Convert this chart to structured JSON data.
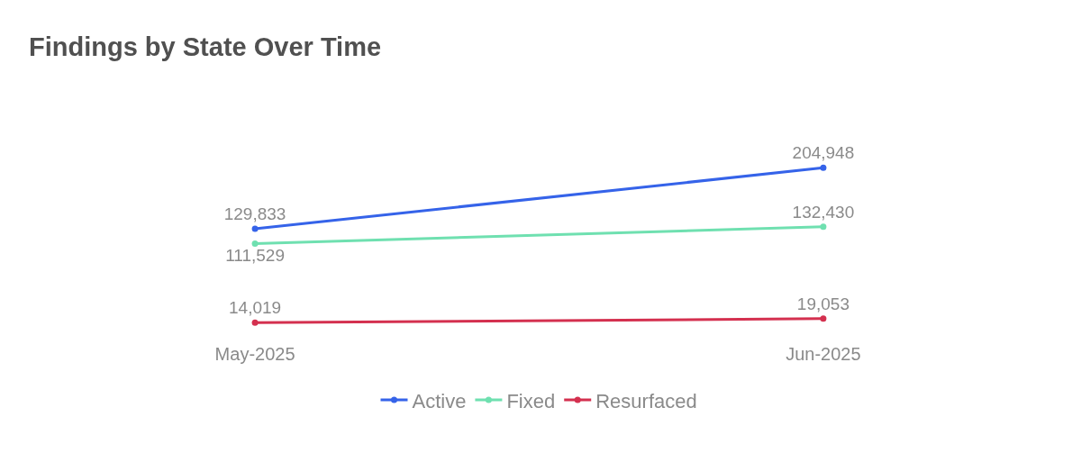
{
  "chart_data": {
    "type": "line",
    "title": "Findings by State Over Time",
    "categories": [
      "May-2025",
      "Jun-2025"
    ],
    "series": [
      {
        "name": "Active",
        "color": "#3563e9",
        "values": [
          129833,
          204948
        ],
        "value_labels": [
          "129,833",
          "204,948"
        ]
      },
      {
        "name": "Fixed",
        "color": "#6fe0b0",
        "values": [
          111529,
          132430
        ],
        "value_labels": [
          "111,529",
          "132,430"
        ]
      },
      {
        "name": "Resurfaced",
        "color": "#d4304f",
        "values": [
          14019,
          19053
        ],
        "value_labels": [
          "14,019",
          "19,053"
        ]
      }
    ],
    "legend": "bottom",
    "marker": "circle",
    "line_style": "solid"
  }
}
